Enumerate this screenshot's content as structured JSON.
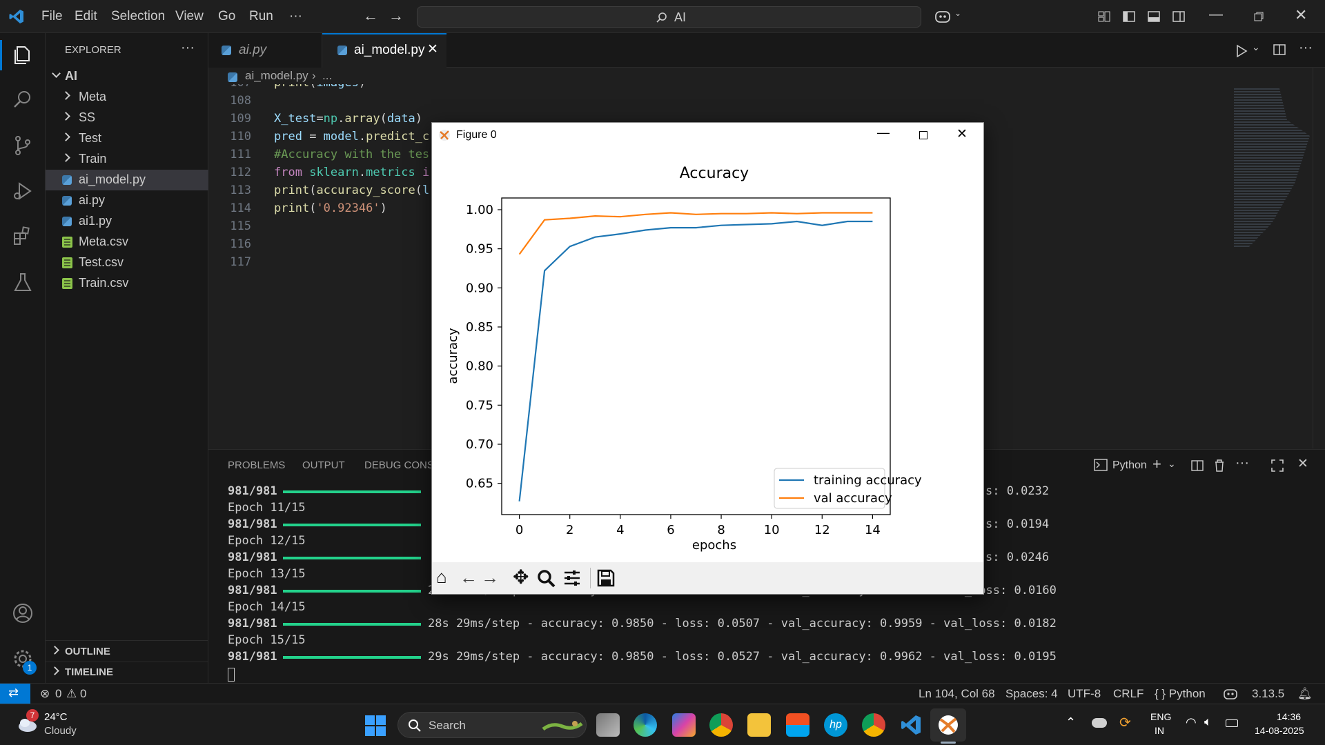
{
  "titlebar": {
    "menu": [
      "File",
      "Edit",
      "Selection",
      "View",
      "Go",
      "Run",
      "···"
    ],
    "search_text": "AI"
  },
  "sidebar": {
    "header": "EXPLORER",
    "root": "AI",
    "folders": [
      "Meta",
      "SS",
      "Test",
      "Train"
    ],
    "files": [
      "ai_model.py",
      "ai.py",
      "ai1.py",
      "Meta.csv",
      "Test.csv",
      "Train.csv"
    ],
    "outline": "OUTLINE",
    "timeline": "TIMELINE"
  },
  "tabs": [
    {
      "label": "ai.py",
      "active": false
    },
    {
      "label": "ai_model.py",
      "active": true
    }
  ],
  "breadcrumb": {
    "file": "ai_model.py",
    "rest": "..."
  },
  "editor": {
    "lines": [
      {
        "no": "107",
        "code": "print(images)"
      },
      {
        "no": "108",
        "code": ""
      },
      {
        "no": "109",
        "code": "X_test=np.array(data)"
      },
      {
        "no": "110",
        "code": "pred = model.predict_c"
      },
      {
        "no": "111",
        "code": "#Accuracy with the tes"
      },
      {
        "no": "112",
        "code": "from sklearn.metrics i"
      },
      {
        "no": "113",
        "code": "print(accuracy_score(l"
      },
      {
        "no": "114",
        "code": "print('0.92346')"
      },
      {
        "no": "115",
        "code": ""
      },
      {
        "no": "116",
        "code": ""
      },
      {
        "no": "117",
        "code": ""
      }
    ]
  },
  "panel": {
    "tabs": [
      "PROBLEMS",
      "OUTPUT",
      "DEBUG CONSO"
    ],
    "terminal_label": "Python",
    "lines": [
      {
        "left": "981/981",
        "right": "s: 0.0232",
        "bar": true
      },
      {
        "left": "Epoch 11/15",
        "right": "",
        "bar": false
      },
      {
        "left": "981/981",
        "right": "s: 0.0194",
        "bar": true
      },
      {
        "left": "Epoch 12/15",
        "right": "",
        "bar": false
      },
      {
        "left": "981/981",
        "right": "s: 0.0246",
        "bar": true
      },
      {
        "left": "Epoch 13/15",
        "right": "",
        "bar": false
      },
      {
        "left": "981/981",
        "right": "2?s 28ms/step - accuracy: 0.9793 - loss: 0.0666 - val_accuracy: 0.9959 - val_loss: 0.0160",
        "bar": true
      },
      {
        "left": "Epoch 14/15",
        "right": "",
        "bar": false
      },
      {
        "left": "981/981",
        "right": "28s 29ms/step - accuracy: 0.9850 - loss: 0.0507 - val_accuracy: 0.9959 - val_loss: 0.0182",
        "bar": true
      },
      {
        "left": "Epoch 15/15",
        "right": "",
        "bar": false
      },
      {
        "left": "981/981",
        "right": "29s 29ms/step - accuracy: 0.9850 - loss: 0.0527 - val_accuracy: 0.9962 - val_loss: 0.0195",
        "bar": true
      }
    ]
  },
  "statusbar": {
    "errors": "0",
    "warnings": "0",
    "position": "Ln 104, Col 68",
    "spaces": "Spaces: 4",
    "encoding": "UTF-8",
    "eol": "CRLF",
    "language": "{ } Python",
    "version": "3.13.5"
  },
  "taskbar": {
    "weather_temp": "24°C",
    "weather_desc": "Cloudy",
    "weather_badge": "7",
    "search": "Search",
    "lang1": "ENG",
    "lang2": "IN",
    "time": "14:36",
    "date": "14-08-2025"
  },
  "figure": {
    "window_title": "Figure 0"
  },
  "chart_data": {
    "type": "line",
    "title": "Accuracy",
    "xlabel": "epochs",
    "ylabel": "accuracy",
    "xlim": [
      -0.7,
      14.7
    ],
    "ylim": [
      0.61,
      1.015
    ],
    "xticks": [
      0,
      2,
      4,
      6,
      8,
      10,
      12,
      14
    ],
    "yticks": [
      0.65,
      0.7,
      0.75,
      0.8,
      0.85,
      0.9,
      0.95,
      1.0
    ],
    "ytick_labels": [
      "0.65",
      "0.70",
      "0.75",
      "0.80",
      "0.85",
      "0.90",
      "0.95",
      "1.00"
    ],
    "legend_position": "lower-right",
    "x": [
      0,
      1,
      2,
      3,
      4,
      5,
      6,
      7,
      8,
      9,
      10,
      11,
      12,
      13,
      14
    ],
    "series": [
      {
        "name": "training accuracy",
        "color": "#1f77b4",
        "values": [
          0.627,
          0.922,
          0.953,
          0.965,
          0.969,
          0.974,
          0.977,
          0.977,
          0.98,
          0.981,
          0.982,
          0.985,
          0.98,
          0.985,
          0.985
        ]
      },
      {
        "name": "val accuracy",
        "color": "#ff7f0e",
        "values": [
          0.943,
          0.987,
          0.989,
          0.992,
          0.991,
          0.994,
          0.996,
          0.994,
          0.995,
          0.995,
          0.996,
          0.995,
          0.996,
          0.996,
          0.996
        ]
      }
    ]
  }
}
